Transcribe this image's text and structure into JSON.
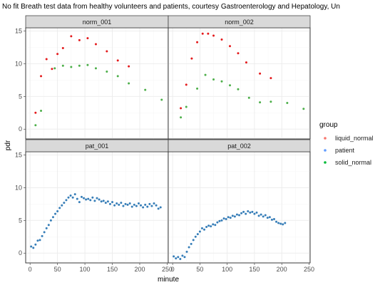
{
  "chart_data": {
    "type": "scatter",
    "title": "No fit  Breath test data from healthy volunteers and patients, courtesy Gastroenterology and Hepatology, Un",
    "xlabel": "minute",
    "ylabel": "pdr",
    "xlim": [
      -8,
      252
    ],
    "ylim": [
      -1.5,
      15.5
    ],
    "x_ticks": [
      0,
      50,
      100,
      150,
      200,
      250
    ],
    "y_ticks": [
      0,
      5,
      10,
      15
    ],
    "grid": true,
    "legend": {
      "title": "group",
      "placement": "right",
      "entries": [
        {
          "name": "liquid_normal",
          "color": "#f8766d"
        },
        {
          "name": "patient",
          "color": "#619cff"
        },
        {
          "name": "solid_normal",
          "color": "#00ba38"
        }
      ]
    },
    "colors": {
      "liquid_normal": "#e41a1c",
      "patient": "#377eb8",
      "solid_normal": "#4daf4a"
    },
    "panels": [
      {
        "label": "norm_001",
        "series": [
          {
            "group": "liquid_normal",
            "points": [
              [
                10,
                2.5
              ],
              [
                20,
                8.1
              ],
              [
                30,
                10.7
              ],
              [
                40,
                9.2
              ],
              [
                50,
                11.5
              ],
              [
                60,
                12.4
              ],
              [
                75,
                14.2
              ],
              [
                90,
                13.6
              ],
              [
                105,
                13.9
              ],
              [
                120,
                13.0
              ],
              [
                140,
                11.9
              ],
              [
                160,
                10.5
              ],
              [
                180,
                9.6
              ]
            ]
          },
          {
            "group": "solid_normal",
            "points": [
              [
                10,
                0.6
              ],
              [
                20,
                2.8
              ],
              [
                45,
                9.3
              ],
              [
                60,
                9.7
              ],
              [
                75,
                9.5
              ],
              [
                90,
                9.7
              ],
              [
                105,
                9.8
              ],
              [
                120,
                9.3
              ],
              [
                140,
                8.8
              ],
              [
                160,
                8.1
              ],
              [
                180,
                7.0
              ],
              [
                210,
                6.0
              ],
              [
                240,
                4.5
              ]
            ]
          }
        ]
      },
      {
        "label": "norm_002",
        "series": [
          {
            "group": "liquid_normal",
            "points": [
              [
                15,
                3.2
              ],
              [
                25,
                6.8
              ],
              [
                35,
                10.8
              ],
              [
                45,
                13.3
              ],
              [
                55,
                14.6
              ],
              [
                65,
                14.6
              ],
              [
                75,
                14.3
              ],
              [
                90,
                13.7
              ],
              [
                105,
                12.7
              ],
              [
                120,
                11.6
              ],
              [
                135,
                10.2
              ],
              [
                160,
                8.5
              ],
              [
                180,
                7.8
              ]
            ]
          },
          {
            "group": "solid_normal",
            "points": [
              [
                15,
                1.8
              ],
              [
                25,
                3.4
              ],
              [
                45,
                6.2
              ],
              [
                60,
                8.3
              ],
              [
                75,
                7.6
              ],
              [
                90,
                7.3
              ],
              [
                105,
                6.7
              ],
              [
                120,
                6.1
              ],
              [
                140,
                4.8
              ],
              [
                160,
                4.1
              ],
              [
                180,
                4.2
              ],
              [
                210,
                4.0
              ],
              [
                240,
                3.1
              ]
            ]
          }
        ]
      },
      {
        "label": "pat_001",
        "series": [
          {
            "group": "patient",
            "points": [
              [
                2,
                1.0
              ],
              [
                6,
                0.8
              ],
              [
                10,
                1.3
              ],
              [
                14,
                1.9
              ],
              [
                18,
                2.0
              ],
              [
                22,
                2.6
              ],
              [
                26,
                3.2
              ],
              [
                30,
                3.8
              ],
              [
                34,
                4.3
              ],
              [
                38,
                5.0
              ],
              [
                42,
                5.5
              ],
              [
                46,
                6.0
              ],
              [
                50,
                6.4
              ],
              [
                54,
                6.9
              ],
              [
                58,
                7.3
              ],
              [
                62,
                7.7
              ],
              [
                66,
                8.1
              ],
              [
                70,
                8.5
              ],
              [
                74,
                8.8
              ],
              [
                78,
                8.5
              ],
              [
                82,
                9.0
              ],
              [
                86,
                8.3
              ],
              [
                90,
                7.8
              ],
              [
                94,
                8.6
              ],
              [
                98,
                8.4
              ],
              [
                102,
                8.2
              ],
              [
                106,
                8.3
              ],
              [
                110,
                8.1
              ],
              [
                114,
                8.5
              ],
              [
                118,
                8.0
              ],
              [
                122,
                8.4
              ],
              [
                126,
                8.2
              ],
              [
                130,
                7.9
              ],
              [
                134,
                8.0
              ],
              [
                138,
                7.7
              ],
              [
                142,
                7.9
              ],
              [
                146,
                7.5
              ],
              [
                150,
                7.8
              ],
              [
                154,
                7.3
              ],
              [
                158,
                7.6
              ],
              [
                162,
                7.4
              ],
              [
                166,
                7.7
              ],
              [
                170,
                7.2
              ],
              [
                174,
                7.5
              ],
              [
                178,
                7.4
              ],
              [
                182,
                7.6
              ],
              [
                186,
                7.1
              ],
              [
                190,
                7.4
              ],
              [
                194,
                7.2
              ],
              [
                198,
                7.6
              ],
              [
                202,
                7.3
              ],
              [
                206,
                7.0
              ],
              [
                210,
                7.4
              ],
              [
                214,
                7.1
              ],
              [
                218,
                7.5
              ],
              [
                222,
                7.2
              ],
              [
                226,
                7.6
              ],
              [
                230,
                7.3
              ],
              [
                234,
                6.8
              ],
              [
                238,
                7.0
              ]
            ]
          }
        ]
      },
      {
        "label": "pat_002",
        "series": [
          {
            "group": "patient",
            "points": [
              [
                2,
                -0.5
              ],
              [
                6,
                -0.8
              ],
              [
                10,
                -0.6
              ],
              [
                14,
                -0.9
              ],
              [
                18,
                -0.4
              ],
              [
                22,
                -0.6
              ],
              [
                26,
                0.2
              ],
              [
                30,
                0.9
              ],
              [
                34,
                1.4
              ],
              [
                38,
                2.0
              ],
              [
                42,
                2.5
              ],
              [
                46,
                2.9
              ],
              [
                50,
                3.3
              ],
              [
                54,
                3.8
              ],
              [
                58,
                3.6
              ],
              [
                62,
                4.0
              ],
              [
                66,
                4.2
              ],
              [
                70,
                4.1
              ],
              [
                74,
                4.4
              ],
              [
                78,
                4.3
              ],
              [
                82,
                4.7
              ],
              [
                86,
                4.9
              ],
              [
                90,
                5.0
              ],
              [
                94,
                5.3
              ],
              [
                98,
                5.2
              ],
              [
                102,
                5.5
              ],
              [
                106,
                5.4
              ],
              [
                110,
                5.7
              ],
              [
                114,
                5.6
              ],
              [
                118,
                5.9
              ],
              [
                122,
                5.8
              ],
              [
                126,
                6.1
              ],
              [
                130,
                6.3
              ],
              [
                134,
                6.0
              ],
              [
                138,
                6.4
              ],
              [
                142,
                6.2
              ],
              [
                146,
                6.3
              ],
              [
                150,
                6.0
              ],
              [
                154,
                6.2
              ],
              [
                158,
                5.7
              ],
              [
                162,
                5.9
              ],
              [
                166,
                5.6
              ],
              [
                170,
                5.8
              ],
              [
                174,
                5.4
              ],
              [
                178,
                5.5
              ],
              [
                182,
                5.1
              ],
              [
                186,
                5.2
              ],
              [
                190,
                4.8
              ],
              [
                194,
                4.6
              ],
              [
                198,
                4.5
              ],
              [
                202,
                4.4
              ],
              [
                206,
                4.6
              ]
            ]
          }
        ]
      }
    ]
  }
}
